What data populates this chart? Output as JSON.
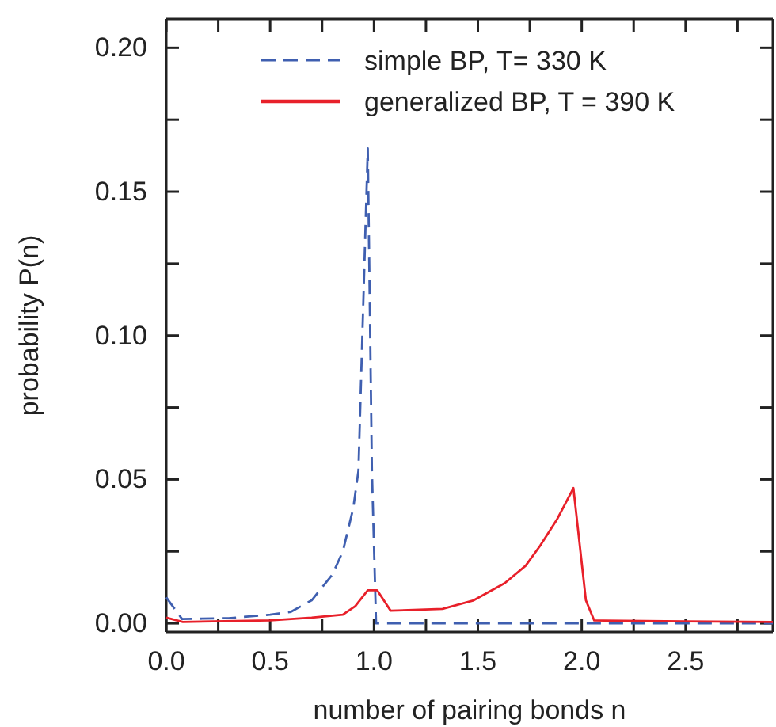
{
  "chart_data": {
    "type": "line",
    "xlabel": "number of pairing bonds n",
    "ylabel": "probability P(n)",
    "xlim": [
      0,
      2.92
    ],
    "ylim": [
      -0.003,
      0.21
    ],
    "xticks": [
      {
        "value": 0,
        "label": "0.0"
      },
      {
        "value": 0.25,
        "label": null
      },
      {
        "value": 0.5,
        "label": "0.5"
      },
      {
        "value": 0.75,
        "label": null
      },
      {
        "value": 1,
        "label": "1.0"
      },
      {
        "value": 1.25,
        "label": null
      },
      {
        "value": 1.5,
        "label": "1.5"
      },
      {
        "value": 1.75,
        "label": null
      },
      {
        "value": 2,
        "label": "2.0"
      },
      {
        "value": 2.25,
        "label": null
      },
      {
        "value": 2.5,
        "label": "2.5"
      },
      {
        "value": 2.75,
        "label": null
      }
    ],
    "yticks": [
      {
        "value": 0,
        "label": "0.00"
      },
      {
        "value": 0.025,
        "label": null
      },
      {
        "value": 0.05,
        "label": "0.05"
      },
      {
        "value": 0.075,
        "label": null
      },
      {
        "value": 0.1,
        "label": "0.10"
      },
      {
        "value": 0.125,
        "label": null
      },
      {
        "value": 0.15,
        "label": "0.15"
      },
      {
        "value": 0.175,
        "label": null
      },
      {
        "value": 0.2,
        "label": "0.20"
      }
    ],
    "grid": false,
    "legend": "top right",
    "marker": "none",
    "series": [
      {
        "name": "simple BP, T= 330 K",
        "color": "#3f5fb0",
        "line_style": "dashed",
        "x": [
          0,
          0.076,
          0.3,
          0.5,
          0.6,
          0.7,
          0.8,
          0.85,
          0.9,
          0.925,
          0.97,
          0.99,
          1.01,
          1.5,
          2,
          2.5,
          2.92
        ],
        "values": [
          0.009,
          0.0015,
          0.0018,
          0.003,
          0.004,
          0.008,
          0.017,
          0.025,
          0.04,
          0.053,
          0.165,
          0.053,
          0,
          0,
          0,
          0,
          0
        ]
      },
      {
        "name": "generalized BP, T = 390 K",
        "color": "#e8202a",
        "line_style": "solid",
        "x": [
          0,
          0.08,
          0.5,
          0.7,
          0.85,
          0.91,
          0.97,
          1.015,
          1.08,
          1.33,
          1.48,
          1.63,
          1.73,
          1.8,
          1.88,
          1.96,
          2.02,
          2.06,
          2.5,
          2.92
        ],
        "values": [
          0.002,
          0.0005,
          0.001,
          0.002,
          0.003,
          0.006,
          0.0115,
          0.0115,
          0.0044,
          0.005,
          0.008,
          0.014,
          0.02,
          0.027,
          0.036,
          0.047,
          0.008,
          0.001,
          0.0007,
          0.0005
        ]
      }
    ]
  }
}
